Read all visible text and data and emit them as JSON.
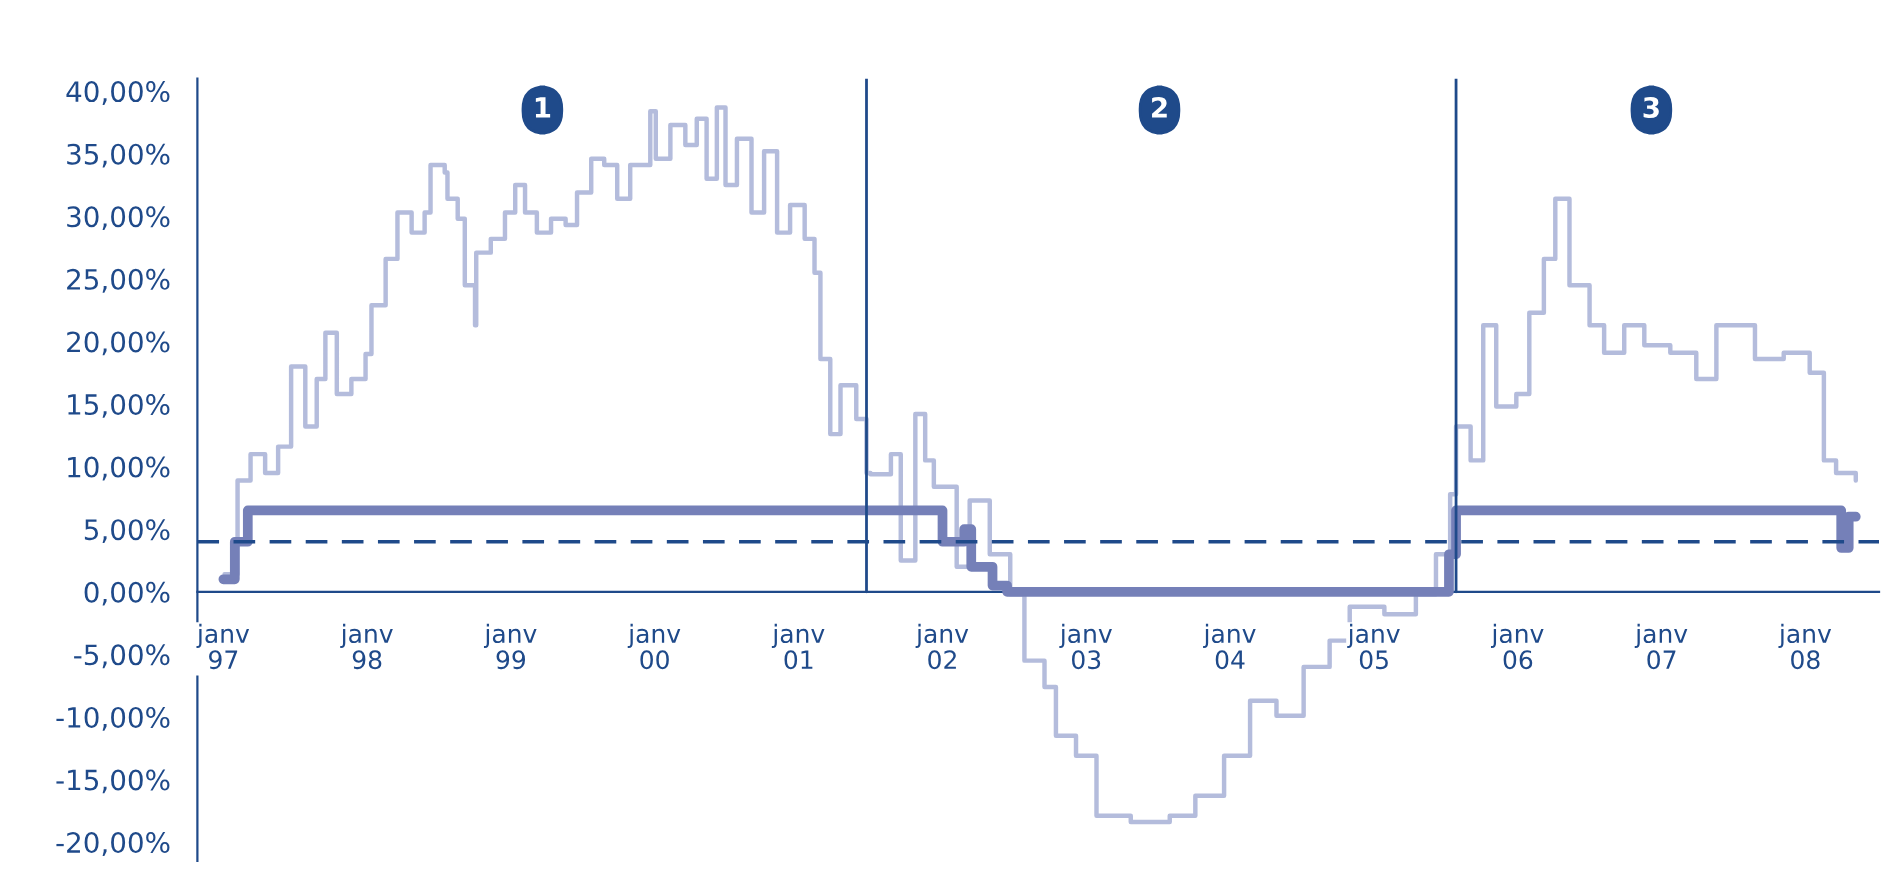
{
  "chart_data": {
    "type": "step",
    "annotations": [
      {
        "text": "1",
        "x": "1999-03-22",
        "y": 38.5
      },
      {
        "text": "2",
        "x": "2003-07-06",
        "y": 38.5
      },
      {
        "text": "3",
        "x": "2006-12-06",
        "y": 38.5
      }
    ],
    "series": [
      {
        "color": "#b4bcdc",
        "x": [
          "1997-01-04",
          "1997-02-06",
          "1997-03-11",
          "1997-04-17",
          "1997-05-20",
          "1997-06-22",
          "1997-07-28",
          "1997-08-26",
          "1997-09-17",
          "1997-10-16",
          "1997-11-22",
          "1997-12-28",
          "1998-01-12",
          "1998-02-17",
          "1998-03-19",
          "1998-04-24",
          "1998-05-27",
          "1998-06-11",
          "1998-07-17",
          "1998-07-24",
          "1998-08-19",
          "1998-09-06",
          "1998-10-02",
          "1998-10-05",
          "1998-11-11",
          "1998-12-17",
          "1999-01-12",
          "1999-02-06",
          "1999-03-08",
          "1999-04-13",
          "1999-05-20",
          "1999-06-18",
          "1999-07-24",
          "1999-08-26",
          "1999-09-28",
          "1999-10-31",
          "1999-12-21",
          "2000-01-04",
          "2000-02-10",
          "2000-03-19",
          "2000-04-17",
          "2000-05-12",
          "2000-06-07",
          "2000-06-29",
          "2000-07-28",
          "2000-09-03",
          "2000-10-05",
          "2000-11-07",
          "2000-12-10",
          "2001-01-16",
          "2001-02-10",
          "2001-02-25",
          "2001-03-22",
          "2001-04-17",
          "2001-05-27",
          "2001-06-22",
          "2001-07-02",
          "2001-08-23",
          "2001-09-17",
          "2001-10-24",
          "2001-11-18",
          "2001-12-10",
          "2002-02-06",
          "2002-03-11",
          "2002-05-01",
          "2002-06-22",
          "2002-07-28",
          "2002-09-17",
          "2002-10-16",
          "2002-12-06",
          "2003-01-27",
          "2003-04-24",
          "2003-08-01",
          "2003-10-05",
          "2003-12-17",
          "2004-02-21",
          "2004-04-28",
          "2004-07-06",
          "2004-09-10",
          "2004-10-31",
          "2005-01-27",
          "2005-04-17",
          "2005-06-07",
          "2005-07-13",
          "2005-07-28",
          "2005-09-03",
          "2005-10-05",
          "2005-11-07",
          "2005-12-28",
          "2006-01-30",
          "2006-03-08",
          "2006-04-06",
          "2006-05-12",
          "2006-07-02",
          "2006-08-08",
          "2006-09-28",
          "2006-11-18",
          "2007-01-23",
          "2007-03-30",
          "2007-05-20",
          "2007-07-06",
          "2007-08-26",
          "2007-11-07",
          "2008-01-12",
          "2008-02-17",
          "2008-03-19",
          "2008-05-08"
        ],
        "values": [
          1.4,
          8.9,
          11,
          9.5,
          11.6,
          18,
          13.2,
          17,
          20.7,
          15.8,
          17,
          19,
          22.9,
          26.6,
          30.3,
          28.7,
          30.3,
          34.1,
          33.5,
          31.4,
          29.8,
          24.5,
          21.3,
          27.1,
          28.2,
          30.3,
          32.5,
          30.3,
          28.7,
          29.8,
          29.3,
          31.9,
          34.6,
          34.1,
          31.4,
          34.1,
          38.4,
          34.6,
          37.3,
          35.7,
          37.8,
          33,
          38.7,
          32.5,
          36.2,
          30.3,
          35.2,
          28.7,
          30.9,
          28.2,
          25.5,
          18.6,
          12.6,
          16.5,
          13.8,
          9.5,
          9.4,
          11,
          2.5,
          14.2,
          10.5,
          8.4,
          2,
          7.3,
          3,
          -0.2,
          -5.5,
          -7.6,
          -11.5,
          -13.1,
          -17.9,
          -18.4,
          -17.9,
          -16.3,
          -13.1,
          -8.7,
          -9.9,
          -6,
          -3.9,
          -1.2,
          -1.8,
          -0.2,
          3,
          7.8,
          13.2,
          10.5,
          21.3,
          14.8,
          15.8,
          22.3,
          26.6,
          31.4,
          24.5,
          21.3,
          19.1,
          21.3,
          19.7,
          19.1,
          17,
          21.3,
          21.3,
          18.6,
          19.1,
          17.5,
          10.5,
          9.5,
          8.9
        ]
      },
      {
        "color": "#7580b8",
        "x": [
          "1997-01-01",
          "1997-01-30",
          "1997-03-04",
          "2001-12-06",
          "2002-01-01",
          "2002-02-25",
          "2002-03-15",
          "2002-05-08",
          "2002-06-14",
          "2005-06-14",
          "2005-07-10",
          "2005-07-28",
          "2008-03-15",
          "2008-04-01",
          "2008-04-20",
          "2008-05-08"
        ],
        "values": [
          1,
          4,
          6.5,
          6.5,
          4,
          5,
          2,
          0.5,
          0,
          0,
          3,
          6.5,
          6.5,
          3.5,
          6,
          6
        ]
      }
    ],
    "ref_lines": [
      {
        "axis": "y",
        "value": 4,
        "color": "#1f4a8a",
        "line_style": "dashed"
      },
      {
        "axis": "x",
        "value": "2001-06-22",
        "color": "#1f4a8a",
        "line_style": "solid"
      },
      {
        "axis": "x",
        "value": "2005-07-28",
        "color": "#1f4a8a",
        "line_style": "solid"
      }
    ],
    "xlim": [
      "1996-10-27",
      "2008-07-06"
    ],
    "xticks": [
      {
        "value": "1997-01-01",
        "label": "janv\n97"
      },
      {
        "value": "1998-01-01",
        "label": "janv\n98"
      },
      {
        "value": "1999-01-01",
        "label": "janv\n99"
      },
      {
        "value": "2000-01-01",
        "label": "janv\n00"
      },
      {
        "value": "2001-01-01",
        "label": "janv\n01"
      },
      {
        "value": "2002-01-01",
        "label": "janv\n02"
      },
      {
        "value": "2003-01-01",
        "label": "janv\n03"
      },
      {
        "value": "2004-01-01",
        "label": "janv\n04"
      },
      {
        "value": "2005-01-01",
        "label": "janv\n05"
      },
      {
        "value": "2006-01-01",
        "label": "janv\n06"
      },
      {
        "value": "2007-01-01",
        "label": "janv\n07"
      },
      {
        "value": "2008-01-01",
        "label": "janv\n08"
      }
    ],
    "ylim": [
      -21.5,
      41
    ],
    "yticks": [
      {
        "value": -20,
        "label": "-20,00%"
      },
      {
        "value": -15,
        "label": "-15,00%"
      },
      {
        "value": -10,
        "label": "-10,00%"
      },
      {
        "value": -5,
        "label": "-5,00%"
      },
      {
        "value": 0,
        "label": "0,00%"
      },
      {
        "value": 5,
        "label": "5,00%"
      },
      {
        "value": 10,
        "label": "10,00%"
      },
      {
        "value": 15,
        "label": "15,00%"
      },
      {
        "value": 20,
        "label": "20,00%"
      },
      {
        "value": 25,
        "label": "25,00%"
      },
      {
        "value": 30,
        "label": "30,00%"
      },
      {
        "value": 35,
        "label": "35,00%"
      },
      {
        "value": 40,
        "label": "40,00%"
      }
    ],
    "grid": false,
    "legend": false
  }
}
